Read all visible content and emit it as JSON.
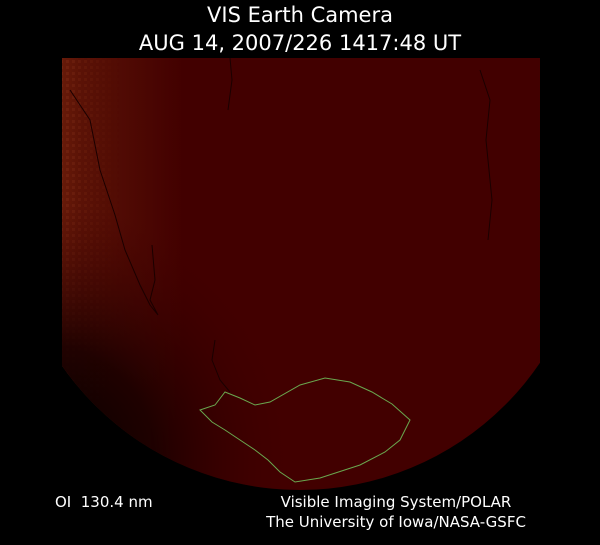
{
  "header": {
    "title": "VIS Earth Camera",
    "timestamp": "AUG 14, 2007/226 1417:48 UT"
  },
  "footer": {
    "filter": "OI  130.4 nm",
    "credit_line_1": "Visible Imaging System/POLAR",
    "credit_line_2": "The University of Iowa/NASA-GSFC"
  }
}
